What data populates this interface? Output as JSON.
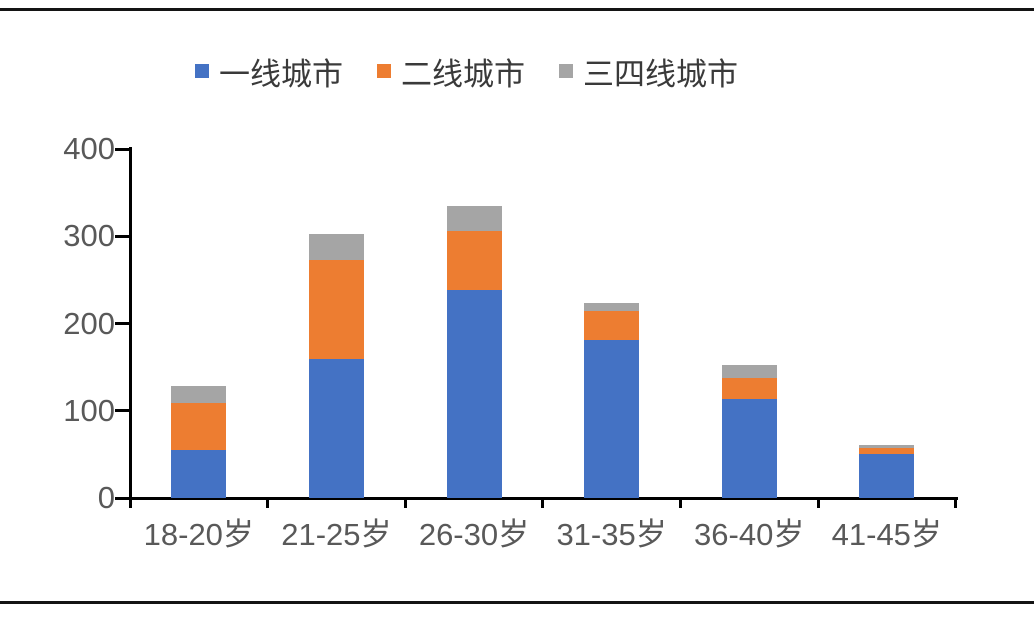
{
  "page": {
    "background": "#ffffff",
    "top_divider": true,
    "bottom_divider": true
  },
  "chart_data": {
    "type": "bar",
    "stacked": true,
    "title": "",
    "xlabel": "",
    "ylabel": "",
    "categories": [
      "18-20岁",
      "21-25岁",
      "26-30岁",
      "31-35岁",
      "36-40岁",
      "41-45岁"
    ],
    "series": [
      {
        "name": "一线城市",
        "color": "#4472C4",
        "values": [
          55,
          159,
          238,
          181,
          114,
          51
        ]
      },
      {
        "name": "二线城市",
        "color": "#ED7D31",
        "values": [
          54,
          114,
          68,
          33,
          24,
          6
        ]
      },
      {
        "name": "三四线城市",
        "color": "#A5A5A5",
        "values": [
          19,
          30,
          29,
          10,
          14,
          4
        ]
      }
    ],
    "stack_totals": [
      128,
      303,
      335,
      224,
      152,
      61
    ],
    "ylim": [
      0,
      400
    ],
    "yticks": [
      0,
      100,
      200,
      300,
      400
    ],
    "grid": false,
    "legend_position": "top",
    "axis_color": "#000000",
    "tick_label_color": "#595959",
    "legend_text_color": "#3a3a3a"
  }
}
